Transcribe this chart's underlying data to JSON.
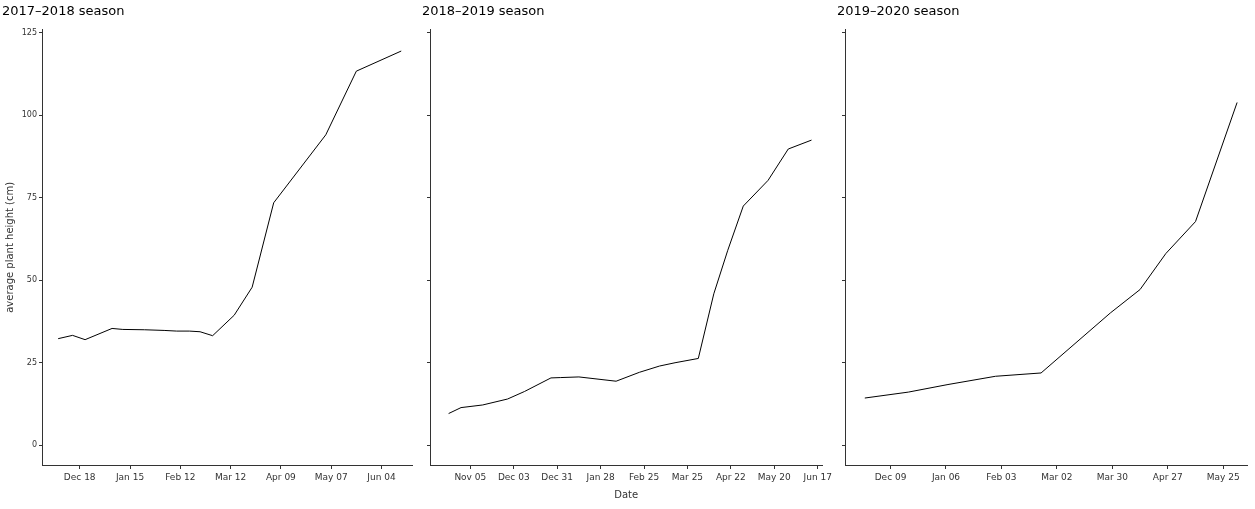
{
  "chart_data": [
    {
      "type": "line",
      "title": "2017–2018 season",
      "ylabel": "average plant height (cm)",
      "color": "#000000",
      "marker": "none",
      "x": [
        "2017-12-06",
        "2017-12-14",
        "2017-12-21",
        "2018-01-05",
        "2018-01-11",
        "2018-01-23",
        "2018-02-03",
        "2018-02-10",
        "2018-02-17",
        "2018-02-23",
        "2018-03-02",
        "2018-03-14",
        "2018-03-24",
        "2018-04-05",
        "2018-05-04",
        "2018-05-21",
        "2018-06-15"
      ],
      "values": [
        32.3,
        33.3,
        32.0,
        35.4,
        35.1,
        35.0,
        34.8,
        34.6,
        34.6,
        34.4,
        33.2,
        39.4,
        47.9,
        73.5,
        94.1,
        113.4,
        119.5
      ],
      "xlim": [
        "2017-11-27",
        "2018-06-21"
      ],
      "xticks": [
        {
          "value": "2017-12-18",
          "label": "Dec 18"
        },
        {
          "value": "2018-01-15",
          "label": "Jan 15"
        },
        {
          "value": "2018-02-12",
          "label": "Feb 12"
        },
        {
          "value": "2018-03-12",
          "label": "Mar 12"
        },
        {
          "value": "2018-04-09",
          "label": "Apr 09"
        },
        {
          "value": "2018-05-07",
          "label": "May 07"
        },
        {
          "value": "2018-06-04",
          "label": "Jun 04"
        }
      ],
      "ylim": [
        -6,
        126
      ],
      "yticks": [
        0,
        25,
        50,
        75,
        100,
        125
      ]
    },
    {
      "type": "line",
      "title": "2018–2019 season",
      "xlabel": "Date",
      "color": "#000000",
      "marker": "none",
      "tick_labels": "x",
      "x": [
        "2018-10-22",
        "2018-10-30",
        "2018-11-13",
        "2018-11-29",
        "2018-12-10",
        "2018-12-27",
        "2019-01-02",
        "2019-01-14",
        "2019-02-07",
        "2019-02-22",
        "2019-03-07",
        "2019-03-17",
        "2019-04-01",
        "2019-04-11",
        "2019-04-20",
        "2019-04-30",
        "2019-05-16",
        "2019-05-29",
        "2019-06-13"
      ],
      "values": [
        9.6,
        11.4,
        12.2,
        14.0,
        16.3,
        20.4,
        20.5,
        20.7,
        19.4,
        22.1,
        24.0,
        25.0,
        26.3,
        45.9,
        59.1,
        72.5,
        80.3,
        89.8,
        92.5
      ],
      "xlim": [
        "2018-10-10",
        "2019-06-20"
      ],
      "xticks": [
        {
          "value": "2018-11-05",
          "label": "Nov 05"
        },
        {
          "value": "2018-12-03",
          "label": "Dec 03"
        },
        {
          "value": "2018-12-31",
          "label": "Dec 31"
        },
        {
          "value": "2019-01-28",
          "label": "Jan 28"
        },
        {
          "value": "2019-02-25",
          "label": "Feb 25"
        },
        {
          "value": "2019-03-25",
          "label": "Mar 25"
        },
        {
          "value": "2019-04-22",
          "label": "Apr 22"
        },
        {
          "value": "2019-05-20",
          "label": "May 20"
        },
        {
          "value": "2019-06-17",
          "label": "Jun 17"
        }
      ],
      "ylim": [
        -6,
        126
      ],
      "yticks": [
        0,
        25,
        50,
        75,
        100,
        125
      ]
    },
    {
      "type": "line",
      "title": "2019–2020 season",
      "color": "#000000",
      "marker": "none",
      "tick_labels": "x",
      "x": [
        "2019-11-26",
        "2019-12-18",
        "2020-01-07",
        "2020-01-31",
        "2020-02-23",
        "2020-03-29",
        "2020-04-13",
        "2020-04-26",
        "2020-05-11",
        "2020-06-01"
      ],
      "values": [
        14.3,
        16.1,
        18.4,
        20.9,
        21.9,
        40.1,
        47.2,
        58.1,
        67.8,
        103.9
      ],
      "xlim": [
        "2019-11-16",
        "2020-06-06"
      ],
      "xticks": [
        {
          "value": "2019-12-09",
          "label": "Dec 09"
        },
        {
          "value": "2020-01-06",
          "label": "Jan 06"
        },
        {
          "value": "2020-02-03",
          "label": "Feb 03"
        },
        {
          "value": "2020-03-02",
          "label": "Mar 02"
        },
        {
          "value": "2020-03-30",
          "label": "Mar 30"
        },
        {
          "value": "2020-04-27",
          "label": "Apr 27"
        },
        {
          "value": "2020-05-25",
          "label": "May 25"
        }
      ],
      "ylim": [
        -6,
        126
      ],
      "yticks": [
        0,
        25,
        50,
        75,
        100,
        125
      ]
    }
  ]
}
